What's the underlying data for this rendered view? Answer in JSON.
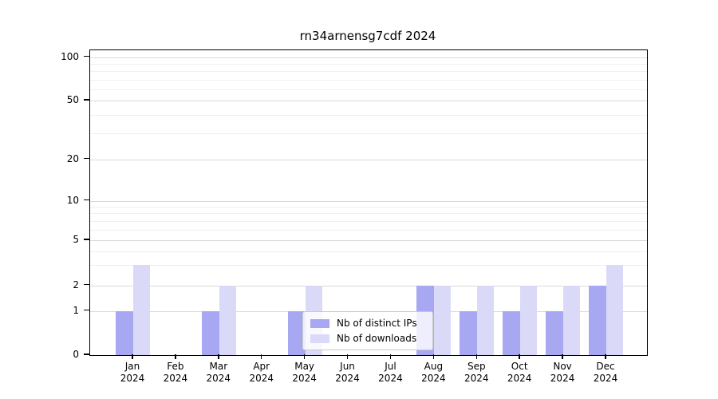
{
  "title": "rn34arnensg7cdf 2024",
  "legend": {
    "items": [
      {
        "label": "Nb of distinct IPs",
        "color": "#a8a8f2"
      },
      {
        "label": "Nb of downloads",
        "color": "#dadaf8"
      }
    ]
  },
  "chart_data": {
    "type": "bar",
    "title": "rn34arnensg7cdf 2024",
    "categories": [
      "Jan 2024",
      "Feb 2024",
      "Mar 2024",
      "Apr 2024",
      "May 2024",
      "Jun 2024",
      "Jul 2024",
      "Aug 2024",
      "Sep 2024",
      "Oct 2024",
      "Nov 2024",
      "Dec 2024"
    ],
    "series": [
      {
        "name": "Nb of distinct IPs",
        "color": "#a8a8f2",
        "values": [
          1,
          0,
          1,
          0,
          1,
          0,
          0,
          2,
          1,
          1,
          1,
          2
        ]
      },
      {
        "name": "Nb of downloads",
        "color": "#dadaf8",
        "values": [
          3,
          0,
          2,
          0,
          2,
          0,
          0,
          2,
          2,
          2,
          2,
          3
        ]
      }
    ],
    "xlabel": "",
    "ylabel": "",
    "y_scale": "log-like (0 baseline, log spacing above 1)",
    "y_major_ticks": [
      0,
      1,
      2,
      5,
      10,
      20,
      50,
      100
    ],
    "y_minor_gridlines": [
      3,
      4,
      6,
      7,
      8,
      9,
      30,
      40,
      60,
      70,
      80,
      90
    ],
    "ylim": [
      0,
      112
    ],
    "grid": true,
    "legend_position": "lower center, inside plot"
  }
}
